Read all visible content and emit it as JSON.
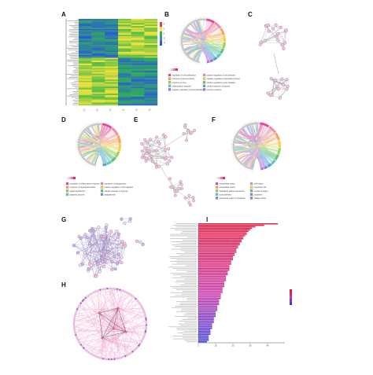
{
  "figure": {
    "panel_labels": [
      "A",
      "B",
      "C",
      "D",
      "E",
      "F",
      "G",
      "H",
      "I"
    ],
    "panel_a": {
      "sample_labels": [
        "C1",
        "C2",
        "C3",
        "T1",
        "T2",
        "T3"
      ],
      "scale_ticks": [
        "4",
        "2",
        "0",
        "-2",
        "-4"
      ]
    },
    "panel_b": {
      "legend_items": [
        "regulation of cell proliferation",
        "positive regulation of cell adhesion",
        "response to glucocorticoid",
        "negative regulation of apoptotic process",
        "response to drug",
        "positive regulation of cell migration",
        "inflammatory response",
        "cellular response to hypoxia",
        "negative regulation of cell proliferation",
        "immune response"
      ]
    },
    "panel_d": {
      "legend_items": [
        "regulation of inflammatory response",
        "regulation of angiogenesis",
        "response to lipopolysaccharide",
        "positive regulation of cell migration",
        "signal transduction",
        "cellular response to hypoxia",
        "apoptotic process",
        "angiogenesis"
      ]
    },
    "panel_f": {
      "legend_items": [
        "extracellular space",
        "cell surface",
        "extracellular matrix",
        "membrane raft",
        "basolateral plasma membrane",
        "receptor complex",
        "focal adhesion",
        "cytoplasm",
        "perinuclear region of cytoplasm",
        "collagen trimer"
      ]
    },
    "panel_i": {
      "bar_values": [
        46,
        38,
        33,
        31,
        30,
        29,
        28,
        28,
        27,
        26,
        26,
        25,
        25,
        24,
        24,
        23,
        23,
        22,
        22,
        22,
        21,
        21,
        20,
        20,
        20,
        19,
        19,
        19,
        18,
        18,
        18,
        18,
        17,
        17,
        17,
        16,
        16,
        16,
        16,
        15,
        15,
        15,
        15,
        14,
        14,
        14,
        14,
        13,
        13,
        13,
        13,
        12,
        12,
        12,
        12,
        11,
        11,
        11,
        11,
        10,
        10,
        10,
        10,
        9,
        9,
        9,
        9,
        8,
        8,
        8,
        8,
        7,
        7,
        7,
        7,
        6,
        6,
        6,
        6,
        5
      ],
      "x_ticks": [
        "0",
        "10",
        "20",
        "30",
        "40"
      ],
      "colors": {
        "high": "#e8173c",
        "mid": "#c431a8",
        "low": "#3b3bd6"
      }
    },
    "colors": {
      "node_fill": "#f4c6da",
      "node_stroke": "#8e6f9e",
      "edge": "#6f6f6f",
      "network_edge_pink": "#e96aa8",
      "heat_high": "#f5e23a",
      "heat_mid": "#2fb54a",
      "heat_low": "#2d5ad8"
    }
  }
}
